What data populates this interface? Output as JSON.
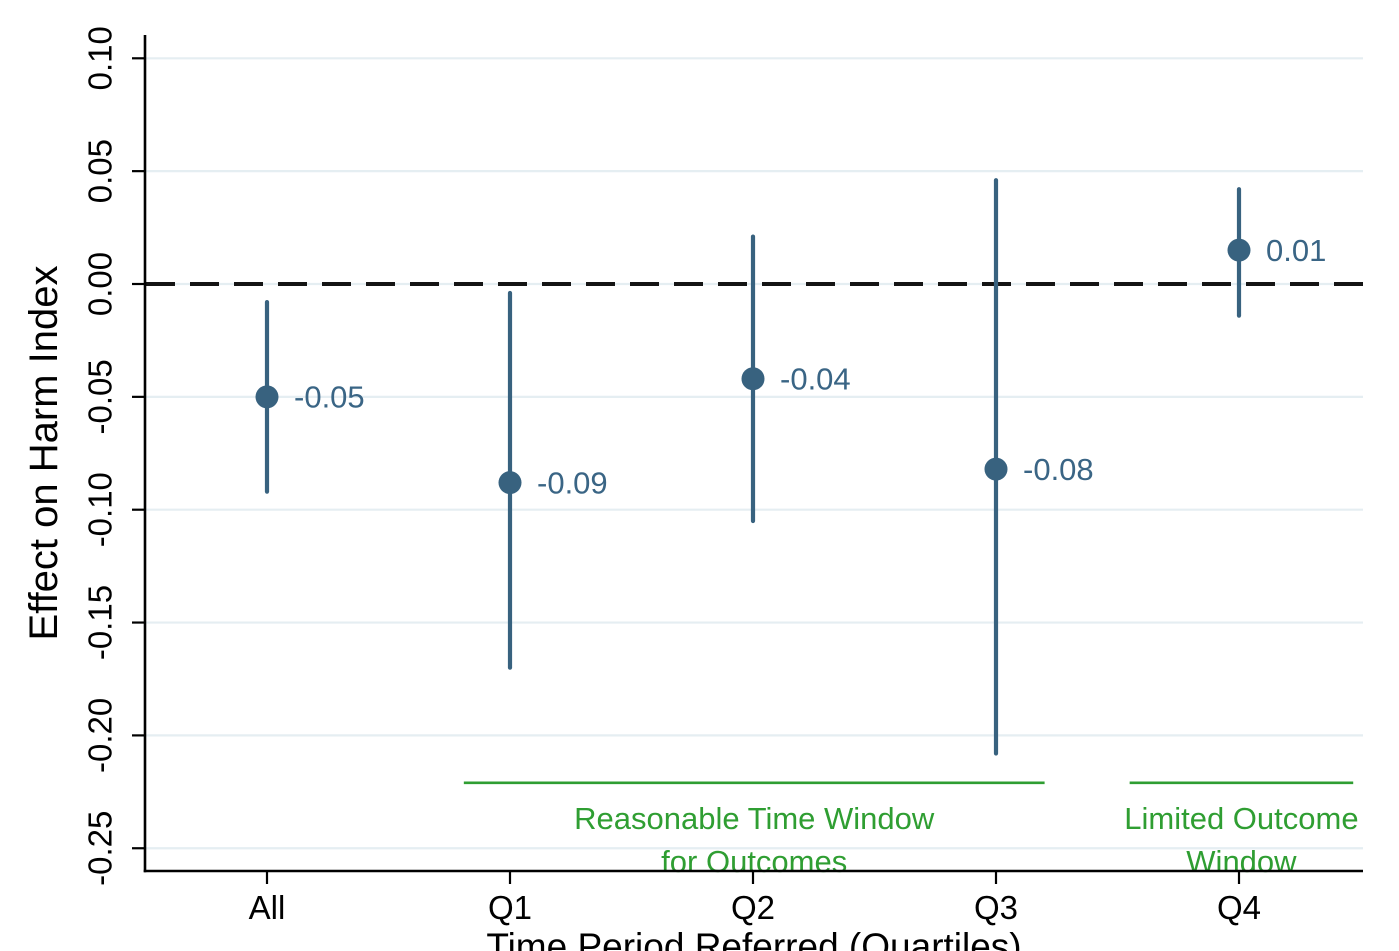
{
  "chart_data": {
    "type": "scatter",
    "subtype": "coefficient-plot-with-ci",
    "title": "",
    "ylabel": "Effect on Harm Index",
    "xlabel": "Time Period Referred (Quartiles)",
    "categories": [
      "All",
      "Q1",
      "Q2",
      "Q3",
      "Q4"
    ],
    "series": [
      {
        "name": "Effect on Harm Index",
        "estimates": [
          -0.05,
          -0.088,
          -0.042,
          -0.082,
          0.015
        ],
        "ci_low": [
          -0.092,
          -0.17,
          -0.105,
          -0.208,
          -0.014
        ],
        "ci_high": [
          -0.008,
          -0.004,
          0.021,
          0.046,
          0.042
        ],
        "point_labels": [
          "-0.05",
          "-0.09",
          "-0.04",
          "-0.08",
          "0.01"
        ]
      }
    ],
    "yticks": [
      0.1,
      0.05,
      0.0,
      -0.05,
      -0.1,
      -0.15,
      -0.2,
      -0.25
    ],
    "ytick_labels": [
      "0.10",
      "0.05",
      "0.00",
      "-0.05",
      "-0.10",
      "-0.15",
      "-0.20",
      "-0.25"
    ],
    "ylim": [
      -0.26,
      0.115
    ],
    "reference_line": 0.0,
    "grid": true,
    "legend": "none",
    "annotations": [
      {
        "lines": [
          "Reasonable Time Window",
          "for Outcomes"
        ],
        "from_cat": 0.81,
        "to_cat": 3.2,
        "line_y_value": -0.221
      },
      {
        "lines": [
          "Limited Outcome",
          "Window"
        ],
        "from_cat": 3.55,
        "to_cat": 4.47,
        "line_y_value": -0.221
      }
    ],
    "colors": {
      "point": "#38627f",
      "ci_line": "#38627f",
      "point_label": "#3a6585",
      "annotation_green": "#2f9e32",
      "gridline": "#e5eef2",
      "zero_line": "#141414",
      "axis": "#000000",
      "tick_label": "#000000",
      "background": "#ffffff"
    }
  }
}
